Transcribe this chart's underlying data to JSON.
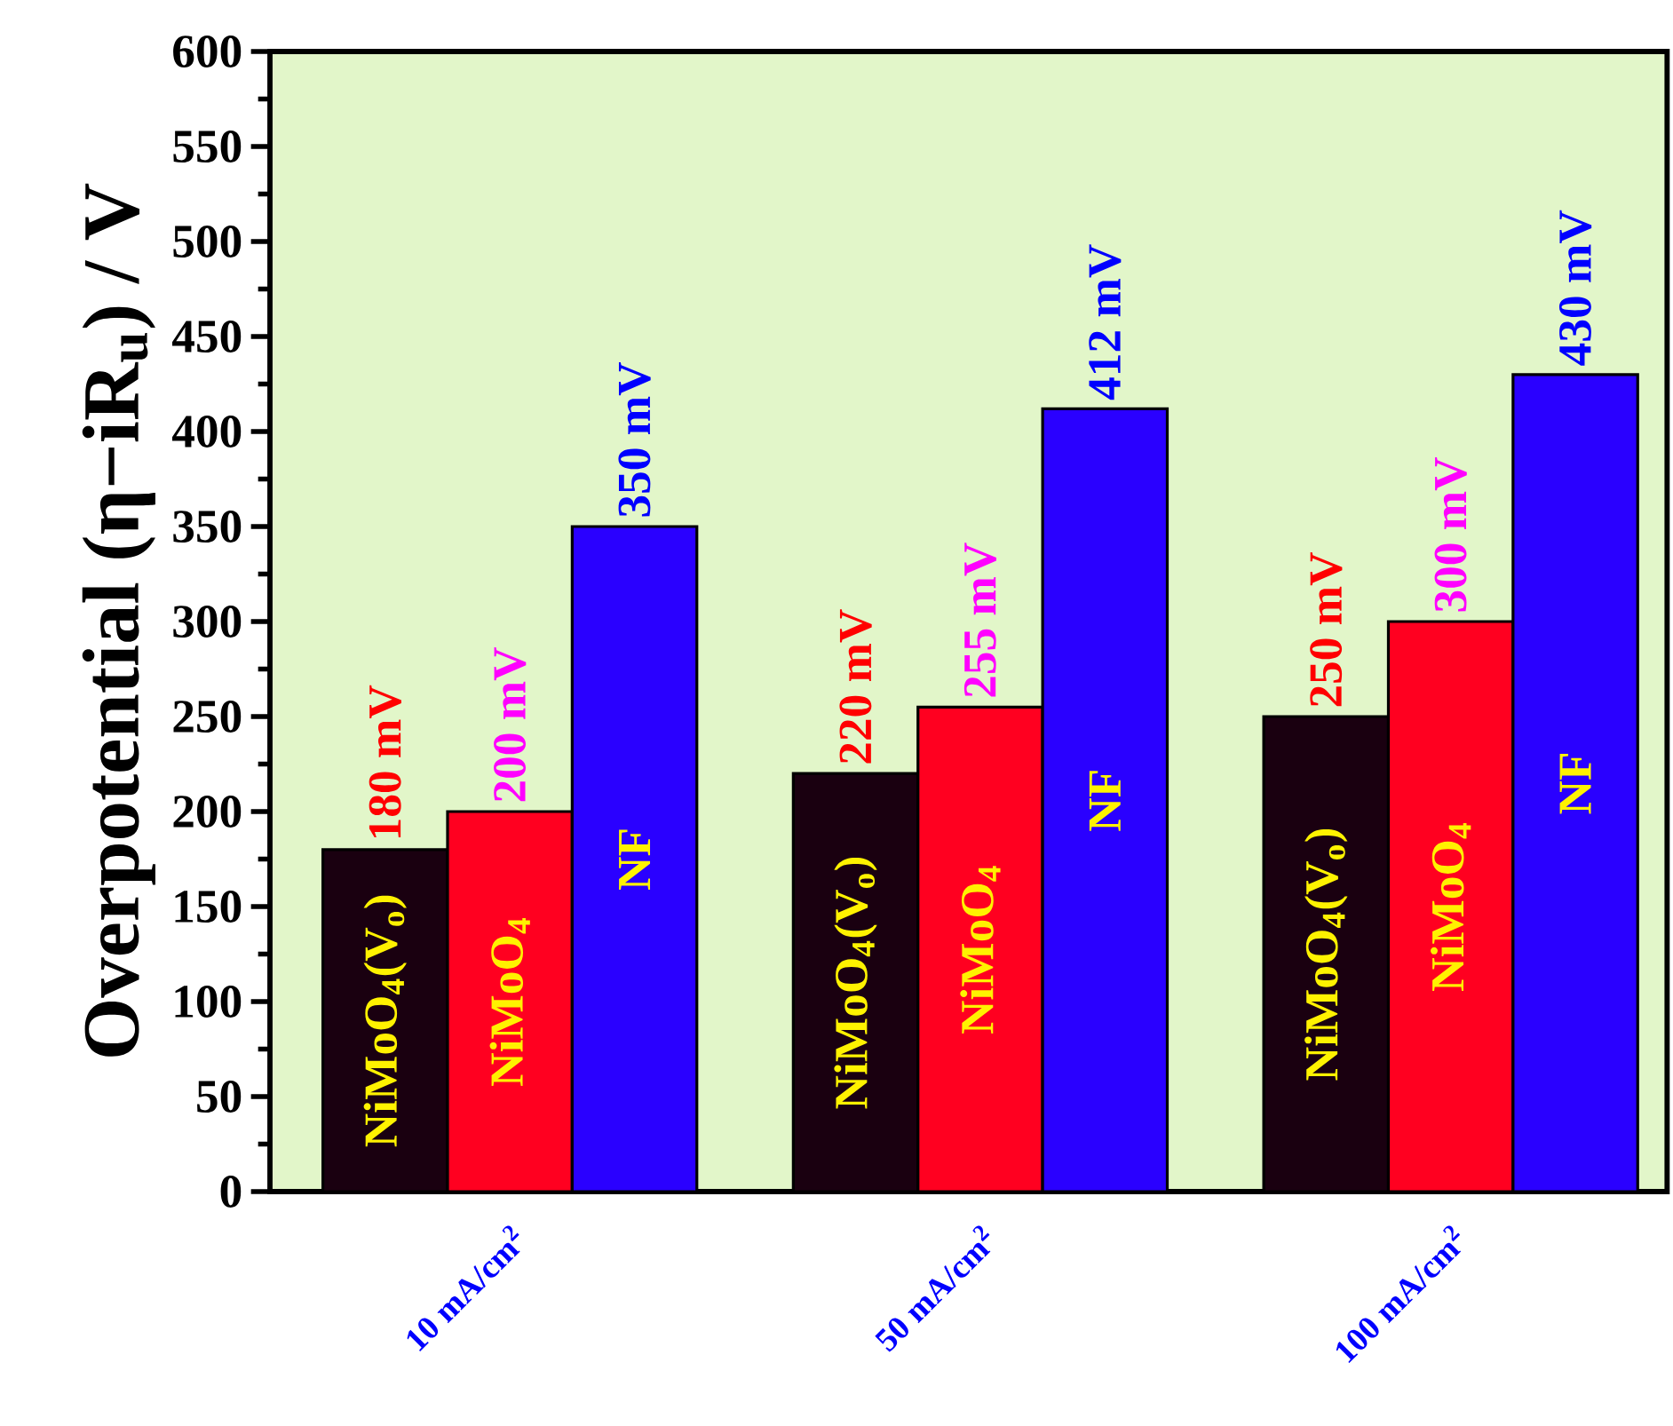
{
  "chart_data": {
    "type": "bar",
    "ylabel": "Overpotential (η−iR$_{u}$) / V",
    "categories": [
      "10 mA/cm$^{2}$",
      "50 mA/cm$^{2}$",
      "100 mA/cm$^{2}$"
    ],
    "series": [
      {
        "name": "NiMoO$_{4}$(V$_{o}$)",
        "color": "#1a0010",
        "values": [
          180,
          220,
          250
        ],
        "value_labels": [
          "180 mV",
          "220 mV",
          "250 mV"
        ]
      },
      {
        "name": "NiMoO$_{4}$",
        "color": "#ff0020",
        "values": [
          200,
          255,
          300
        ],
        "value_labels": [
          "200 mV",
          "255 mV",
          "300 mV"
        ]
      },
      {
        "name": "NF",
        "color": "#2a00ff",
        "values": [
          350,
          412,
          430
        ],
        "value_labels": [
          "350 mV",
          "412 mV",
          "430 mV"
        ]
      }
    ],
    "ylim": [
      0,
      600
    ],
    "yticks": [
      0,
      50,
      100,
      150,
      200,
      250,
      300,
      350,
      400,
      450,
      500,
      550,
      600
    ]
  }
}
